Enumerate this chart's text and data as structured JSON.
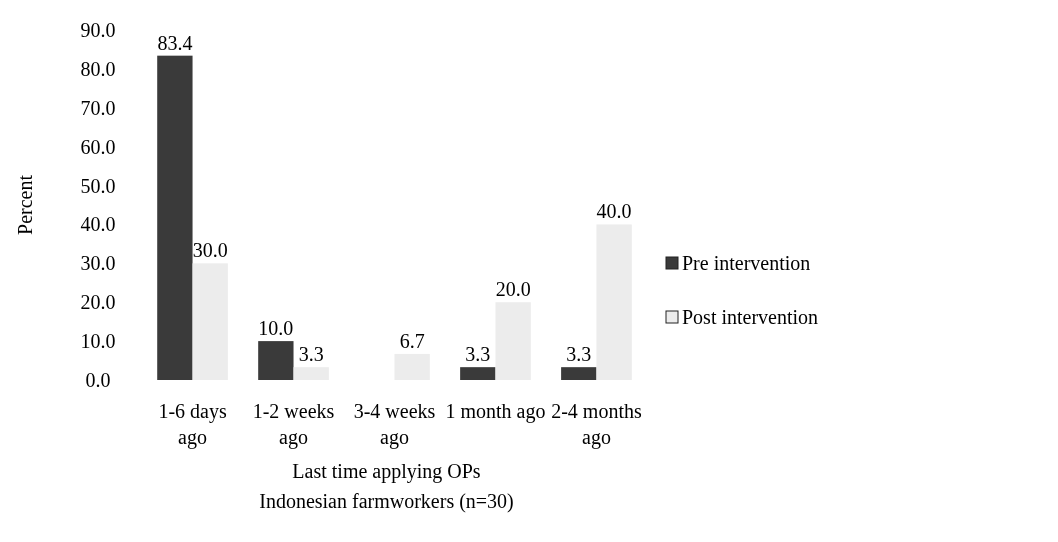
{
  "chart_data": {
    "type": "bar",
    "xlabel": "Last time applying OPs",
    "ylabel": "Percent",
    "annotations": [
      "Indonesian farmworkers (n=30)"
    ],
    "categories": [
      "1-6 days ago",
      "1-2 weeks ago",
      "3-4 weeks ago",
      "1 month ago",
      "2-4 months ago"
    ],
    "series": [
      {
        "name": "Pre intervention",
        "color": "#3a3a3a",
        "values": [
          83.4,
          10.0,
          null,
          3.3,
          3.3
        ],
        "value_labels": [
          "83.4",
          "10.0",
          null,
          "3.3",
          "3.3"
        ]
      },
      {
        "name": "Post intervention",
        "color": "#ececec",
        "values": [
          30.0,
          3.3,
          6.7,
          20.0,
          40.0
        ],
        "value_labels": [
          "30.0",
          "3.3",
          "6.7",
          "20.0",
          "40.0"
        ]
      }
    ],
    "ylim": [
      0,
      90
    ],
    "yticks": [
      {
        "value": 0,
        "label": "0.0"
      },
      {
        "value": 10,
        "label": "10.0"
      },
      {
        "value": 20,
        "label": "20.0"
      },
      {
        "value": 30,
        "label": "30.0"
      },
      {
        "value": 40,
        "label": "40.0"
      },
      {
        "value": 50,
        "label": "50.0"
      },
      {
        "value": 60,
        "label": "60.0"
      },
      {
        "value": 70,
        "label": "70.0"
      },
      {
        "value": 80,
        "label": "80.0"
      },
      {
        "value": 90,
        "label": "90.0"
      }
    ],
    "grid": false,
    "legend": "right"
  }
}
